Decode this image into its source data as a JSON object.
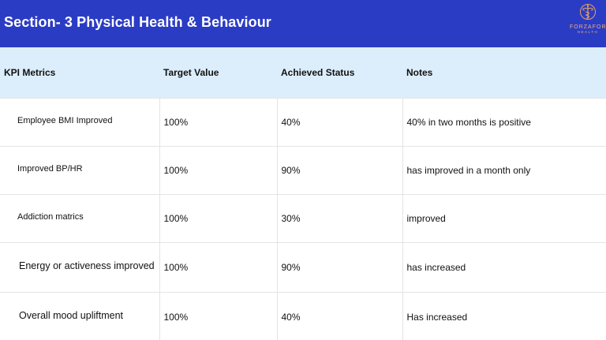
{
  "header": {
    "title": "Section- 3 Physical Health & Behaviour",
    "background": "#2b3cc4",
    "logo": {
      "name": "FORZAFORMA",
      "sub": "HEALTH",
      "icon": "caduceus-icon",
      "color": "#e8a060"
    }
  },
  "table": {
    "header_background": "#dceefc",
    "columns": [
      "KPI Metrics",
      "Target Value",
      "Achieved Status",
      "Notes"
    ],
    "rows": [
      {
        "metric": "Employee BMI Improved",
        "target": "100%",
        "achieved": "40%",
        "notes": "40% in two months is positive"
      },
      {
        "metric": "Improved BP/HR",
        "target": "100%",
        "achieved": "90%",
        "notes": "has improved in a month only"
      },
      {
        "metric": "Addiction matrics",
        "target": "100%",
        "achieved": "30%",
        "notes": "improved"
      },
      {
        "metric": "Energy or activeness improved",
        "target": "100%",
        "achieved": "90%",
        "notes": "has increased"
      },
      {
        "metric": "Overall mood upliftment",
        "target": "100%",
        "achieved": "40%",
        "notes": "Has increased"
      }
    ]
  }
}
